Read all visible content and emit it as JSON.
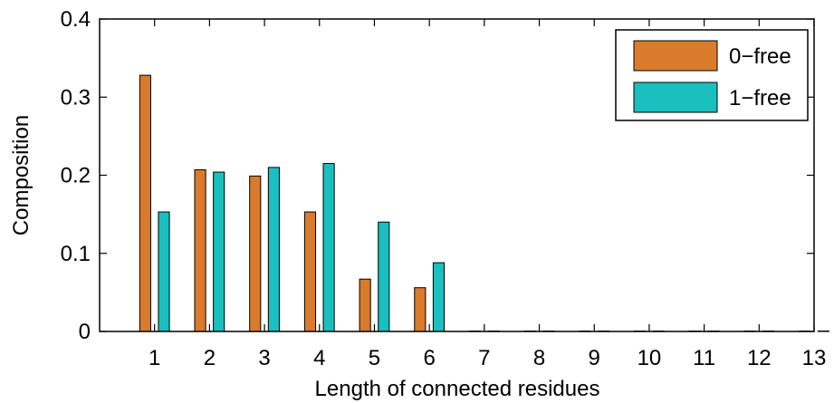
{
  "chart_data": {
    "type": "bar",
    "title": "",
    "xlabel": "Length of connected residues",
    "ylabel": "Composition",
    "categories": [
      "1",
      "2",
      "3",
      "4",
      "5",
      "6",
      "7",
      "8",
      "9",
      "10",
      "11",
      "12",
      "13"
    ],
    "series": [
      {
        "name": "0−free",
        "color": "#d97b2b",
        "values": [
          0.328,
          0.207,
          0.199,
          0.153,
          0.067,
          0.056,
          0,
          0,
          0,
          0,
          0,
          0,
          0
        ]
      },
      {
        "name": "1−free",
        "color": "#1abfbf",
        "values": [
          0.153,
          0.204,
          0.21,
          0.215,
          0.14,
          0.088,
          0,
          0,
          0,
          0,
          0,
          0,
          0
        ]
      }
    ],
    "yticks": [
      "0",
      "0.1",
      "0.2",
      "0.3",
      "0.4"
    ],
    "ylim": [
      0,
      0.4
    ],
    "xlim": [
      0,
      13
    ],
    "grid": false,
    "legend_position": "top-right"
  }
}
